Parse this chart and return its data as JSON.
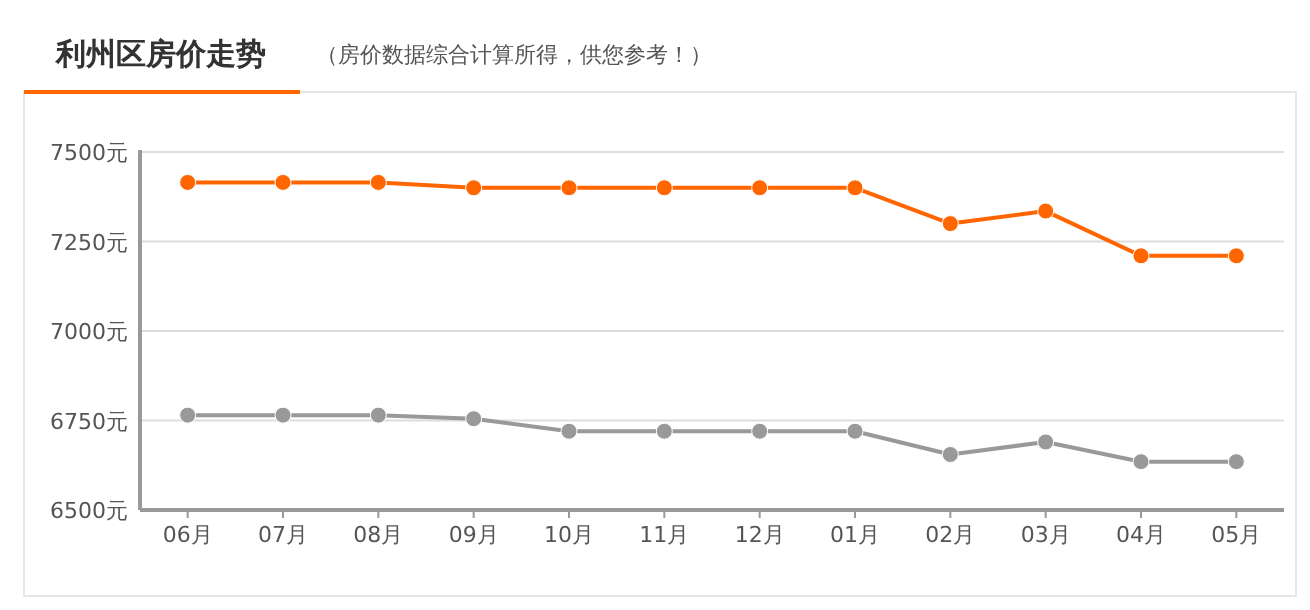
{
  "chart_data": {
    "type": "line",
    "title": "利州区房价走势",
    "subtitle": "（房价数据综合计算所得，供您参考！）",
    "categories": [
      "06月",
      "07月",
      "08月",
      "09月",
      "10月",
      "11月",
      "12月",
      "01月",
      "02月",
      "03月",
      "04月",
      "05月"
    ],
    "series": [
      {
        "color": "#ff6600",
        "values": [
          7415,
          7415,
          7415,
          7400,
          7400,
          7400,
          7400,
          7400,
          7300,
          7335,
          7210,
          7210
        ]
      },
      {
        "color": "#999999",
        "values": [
          6765,
          6765,
          6765,
          6755,
          6720,
          6720,
          6720,
          6720,
          6655,
          6690,
          6635,
          6635
        ]
      }
    ],
    "ylim": [
      6500,
      7500
    ],
    "yticks": [
      {
        "value": 6500,
        "label": "6500元"
      },
      {
        "value": 6750,
        "label": "6750元"
      },
      {
        "value": 7000,
        "label": "7000元"
      },
      {
        "value": 7250,
        "label": "7250元"
      },
      {
        "value": 7500,
        "label": "7500元"
      }
    ],
    "grid": "y",
    "marker": "circle",
    "line_style": "solid"
  }
}
